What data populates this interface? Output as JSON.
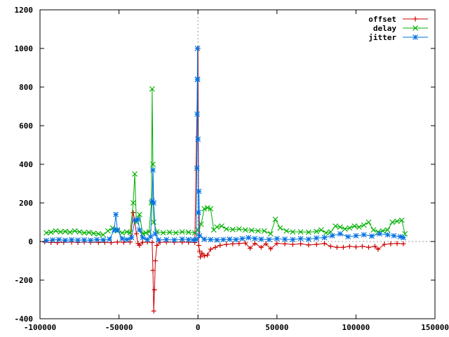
{
  "chart_data": {
    "type": "line",
    "title": "",
    "xlabel": "",
    "ylabel": "",
    "xlim": [
      -100000,
      150000
    ],
    "ylim": [
      -400,
      1200
    ],
    "x_ticks": [
      -100000,
      -50000,
      0,
      50000,
      100000,
      150000
    ],
    "y_ticks": [
      -400,
      -200,
      0,
      200,
      400,
      600,
      800,
      1000,
      1200
    ],
    "zero_axes": true,
    "grid": false,
    "legend_position": "top-right",
    "series": [
      {
        "name": "offset",
        "color": "#cc0000",
        "marker": "plus",
        "points": [
          [
            -97000,
            -2
          ],
          [
            -93000,
            -5
          ],
          [
            -89000,
            -6
          ],
          [
            -85000,
            -4
          ],
          [
            -80000,
            -3
          ],
          [
            -76000,
            -5
          ],
          [
            -72000,
            -3
          ],
          [
            -68000,
            -4
          ],
          [
            -63000,
            -5
          ],
          [
            -59000,
            -4
          ],
          [
            -55000,
            -6
          ],
          [
            -51000,
            -3
          ],
          [
            -47000,
            -4
          ],
          [
            -43000,
            -3
          ],
          [
            -41000,
            150
          ],
          [
            -40000,
            110
          ],
          [
            -39000,
            40
          ],
          [
            -38000,
            -10
          ],
          [
            -37000,
            -20
          ],
          [
            -35000,
            -4
          ],
          [
            -32000,
            -3
          ],
          [
            -29000,
            -5
          ],
          [
            -28500,
            -150
          ],
          [
            -28000,
            -360
          ],
          [
            -27500,
            -250
          ],
          [
            -27000,
            -100
          ],
          [
            -26000,
            -20
          ],
          [
            -24000,
            -4
          ],
          [
            -20000,
            -3
          ],
          [
            -15000,
            -4
          ],
          [
            -10000,
            -3
          ],
          [
            -6000,
            -4
          ],
          [
            -2000,
            -5
          ],
          [
            0,
            1000
          ],
          [
            500,
            -20
          ],
          [
            1000,
            -50
          ],
          [
            1500,
            -80
          ],
          [
            2500,
            -60
          ],
          [
            4000,
            -75
          ],
          [
            6000,
            -70
          ],
          [
            8000,
            -40
          ],
          [
            11000,
            -30
          ],
          [
            14000,
            -20
          ],
          [
            18000,
            -15
          ],
          [
            22000,
            -12
          ],
          [
            26000,
            -10
          ],
          [
            30000,
            -8
          ],
          [
            33000,
            -35
          ],
          [
            36000,
            -10
          ],
          [
            40000,
            -30
          ],
          [
            43000,
            -12
          ],
          [
            46000,
            -38
          ],
          [
            50000,
            -10
          ],
          [
            55000,
            -12
          ],
          [
            60000,
            -15
          ],
          [
            65000,
            -12
          ],
          [
            70000,
            -18
          ],
          [
            75000,
            -15
          ],
          [
            80000,
            -10
          ],
          [
            84000,
            -25
          ],
          [
            88000,
            -30
          ],
          [
            92000,
            -30
          ],
          [
            96000,
            -25
          ],
          [
            100000,
            -28
          ],
          [
            104000,
            -25
          ],
          [
            108000,
            -30
          ],
          [
            112000,
            -25
          ],
          [
            114000,
            -40
          ],
          [
            118000,
            -15
          ],
          [
            122000,
            -12
          ],
          [
            126000,
            -10
          ],
          [
            130000,
            -12
          ]
        ]
      },
      {
        "name": "delay",
        "color": "#00b000",
        "marker": "cross",
        "points": [
          [
            -96000,
            45
          ],
          [
            -93000,
            48
          ],
          [
            -90000,
            55
          ],
          [
            -87000,
            50
          ],
          [
            -84000,
            52
          ],
          [
            -81000,
            48
          ],
          [
            -78000,
            55
          ],
          [
            -75000,
            50
          ],
          [
            -72000,
            45
          ],
          [
            -69000,
            47
          ],
          [
            -66000,
            42
          ],
          [
            -63000,
            40
          ],
          [
            -60000,
            35
          ],
          [
            -57000,
            55
          ],
          [
            -54000,
            70
          ],
          [
            -51000,
            55
          ],
          [
            -48000,
            45
          ],
          [
            -45000,
            50
          ],
          [
            -43000,
            45
          ],
          [
            -41000,
            200
          ],
          [
            -40000,
            350
          ],
          [
            -39000,
            100
          ],
          [
            -37000,
            140
          ],
          [
            -35000,
            40
          ],
          [
            -33000,
            45
          ],
          [
            -31000,
            50
          ],
          [
            -29500,
            200
          ],
          [
            -29000,
            790
          ],
          [
            -28500,
            400
          ],
          [
            -28000,
            100
          ],
          [
            -26000,
            50
          ],
          [
            -22000,
            45
          ],
          [
            -18000,
            48
          ],
          [
            -14000,
            45
          ],
          [
            -10000,
            50
          ],
          [
            -6000,
            48
          ],
          [
            -2000,
            45
          ],
          [
            0,
            60
          ],
          [
            2000,
            90
          ],
          [
            4000,
            170
          ],
          [
            6000,
            175
          ],
          [
            8000,
            170
          ],
          [
            10000,
            60
          ],
          [
            12000,
            75
          ],
          [
            15000,
            80
          ],
          [
            18000,
            65
          ],
          [
            22000,
            62
          ],
          [
            26000,
            65
          ],
          [
            30000,
            60
          ],
          [
            34000,
            58
          ],
          [
            38000,
            55
          ],
          [
            42000,
            55
          ],
          [
            46000,
            40
          ],
          [
            49000,
            115
          ],
          [
            52000,
            70
          ],
          [
            56000,
            55
          ],
          [
            60000,
            50
          ],
          [
            65000,
            50
          ],
          [
            70000,
            48
          ],
          [
            75000,
            52
          ],
          [
            78000,
            60
          ],
          [
            81000,
            45
          ],
          [
            84000,
            50
          ],
          [
            87000,
            80
          ],
          [
            90000,
            75
          ],
          [
            93000,
            65
          ],
          [
            96000,
            70
          ],
          [
            99000,
            80
          ],
          [
            102000,
            75
          ],
          [
            105000,
            85
          ],
          [
            108000,
            100
          ],
          [
            111000,
            60
          ],
          [
            114000,
            50
          ],
          [
            117000,
            55
          ],
          [
            120000,
            60
          ],
          [
            123000,
            100
          ],
          [
            126000,
            105
          ],
          [
            129000,
            110
          ],
          [
            131000,
            40
          ]
        ]
      },
      {
        "name": "jitter",
        "color": "#0070e0",
        "marker": "star",
        "points": [
          [
            -96000,
            5
          ],
          [
            -92000,
            8
          ],
          [
            -88000,
            10
          ],
          [
            -84000,
            6
          ],
          [
            -80000,
            9
          ],
          [
            -76000,
            7
          ],
          [
            -72000,
            8
          ],
          [
            -68000,
            6
          ],
          [
            -64000,
            10
          ],
          [
            -60000,
            8
          ],
          [
            -56000,
            12
          ],
          [
            -53000,
            60
          ],
          [
            -52000,
            140
          ],
          [
            -51000,
            60
          ],
          [
            -48000,
            15
          ],
          [
            -45000,
            10
          ],
          [
            -42000,
            20
          ],
          [
            -40000,
            110
          ],
          [
            -38000,
            115
          ],
          [
            -37000,
            60
          ],
          [
            -35000,
            20
          ],
          [
            -32000,
            10
          ],
          [
            -30000,
            25
          ],
          [
            -29000,
            210
          ],
          [
            -28500,
            370
          ],
          [
            -28000,
            200
          ],
          [
            -27000,
            40
          ],
          [
            -25000,
            8
          ],
          [
            -20000,
            10
          ],
          [
            -15000,
            8
          ],
          [
            -10000,
            12
          ],
          [
            -6000,
            10
          ],
          [
            -3000,
            8
          ],
          [
            -1000,
            10
          ],
          [
            -700,
            380
          ],
          [
            -500,
            660
          ],
          [
            -400,
            840
          ],
          [
            -300,
            1000
          ],
          [
            -200,
            840
          ],
          [
            0,
            530
          ],
          [
            300,
            150
          ],
          [
            600,
            260
          ],
          [
            1000,
            30
          ],
          [
            4000,
            12
          ],
          [
            8000,
            10
          ],
          [
            12000,
            8
          ],
          [
            16000,
            10
          ],
          [
            20000,
            12
          ],
          [
            24000,
            10
          ],
          [
            28000,
            15
          ],
          [
            32000,
            20
          ],
          [
            36000,
            15
          ],
          [
            40000,
            12
          ],
          [
            45000,
            10
          ],
          [
            50000,
            15
          ],
          [
            55000,
            12
          ],
          [
            60000,
            10
          ],
          [
            65000,
            15
          ],
          [
            70000,
            12
          ],
          [
            75000,
            18
          ],
          [
            80000,
            20
          ],
          [
            85000,
            30
          ],
          [
            90000,
            40
          ],
          [
            95000,
            25
          ],
          [
            100000,
            30
          ],
          [
            105000,
            35
          ],
          [
            110000,
            28
          ],
          [
            115000,
            40
          ],
          [
            120000,
            35
          ],
          [
            124000,
            30
          ],
          [
            128000,
            25
          ],
          [
            130000,
            20
          ]
        ]
      }
    ]
  }
}
